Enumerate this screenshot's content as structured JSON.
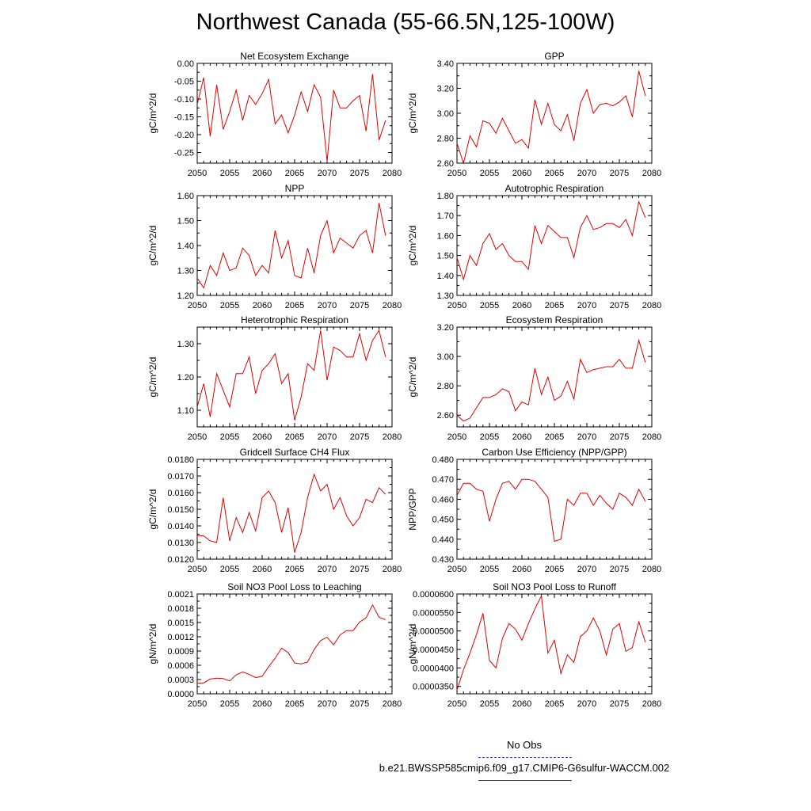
{
  "title": "Northwest Canada (55-66.5N,125-100W)",
  "legend": {
    "obs_label": "No Obs",
    "obs_color": "#3b3bd6",
    "case_label": "b.e21.BWSSP585cmip6.f09_g17.CMIP6-G6sulfur-WACCM.002",
    "case_color": "#e00000"
  },
  "chart_data": [
    {
      "type": "line",
      "title": "Net Ecosystem Exchange",
      "ylabel": "gC/m^2/d",
      "xlim": [
        2050,
        2080
      ],
      "ylim": [
        -0.28,
        0.0
      ],
      "xticks": [
        2050,
        2055,
        2060,
        2065,
        2070,
        2075,
        2080
      ],
      "yticks": [
        0.0,
        -0.05,
        -0.1,
        -0.15,
        -0.2,
        -0.25
      ],
      "ytick_labels": [
        "0.00",
        "-0.05",
        "-0.10",
        "-0.15",
        "-0.20",
        "-0.25"
      ],
      "x": [
        2050,
        2051,
        2052,
        2053,
        2054,
        2055,
        2056,
        2057,
        2058,
        2059,
        2060,
        2061,
        2062,
        2063,
        2064,
        2065,
        2066,
        2067,
        2068,
        2069,
        2070,
        2071,
        2072,
        2073,
        2074,
        2075,
        2076,
        2077,
        2078,
        2079
      ],
      "series": [
        {
          "color": "#e00000",
          "values": [
            -0.115,
            -0.04,
            -0.205,
            -0.06,
            -0.185,
            -0.135,
            -0.075,
            -0.16,
            -0.09,
            -0.115,
            -0.085,
            -0.045,
            -0.17,
            -0.145,
            -0.195,
            -0.145,
            -0.08,
            -0.135,
            -0.06,
            -0.095,
            -0.275,
            -0.075,
            -0.125,
            -0.125,
            -0.105,
            -0.09,
            -0.19,
            -0.03,
            -0.215,
            -0.16
          ]
        }
      ]
    },
    {
      "type": "line",
      "title": "GPP",
      "ylabel": "gC/m^2/d",
      "xlim": [
        2050,
        2080
      ],
      "ylim": [
        2.6,
        3.4
      ],
      "xticks": [
        2050,
        2055,
        2060,
        2065,
        2070,
        2075,
        2080
      ],
      "yticks": [
        2.6,
        2.8,
        3.0,
        3.2,
        3.4
      ],
      "ytick_labels": [
        "2.60",
        "2.80",
        "3.00",
        "3.20",
        "3.40"
      ],
      "x": [
        2050,
        2051,
        2052,
        2053,
        2054,
        2055,
        2056,
        2057,
        2058,
        2059,
        2060,
        2061,
        2062,
        2063,
        2064,
        2065,
        2066,
        2067,
        2068,
        2069,
        2070,
        2071,
        2072,
        2073,
        2074,
        2075,
        2076,
        2077,
        2078,
        2079
      ],
      "series": [
        {
          "color": "#e00000",
          "values": [
            2.76,
            2.6,
            2.82,
            2.73,
            2.94,
            2.92,
            2.84,
            2.96,
            2.86,
            2.76,
            2.79,
            2.72,
            3.11,
            2.91,
            3.08,
            2.91,
            2.86,
            2.99,
            2.78,
            3.08,
            3.19,
            3.0,
            3.07,
            3.08,
            3.06,
            3.09,
            3.14,
            2.97,
            3.34,
            3.14
          ]
        }
      ]
    },
    {
      "type": "line",
      "title": "NPP",
      "ylabel": "gC/m^2/d",
      "xlim": [
        2050,
        2080
      ],
      "ylim": [
        1.2,
        1.6
      ],
      "xticks": [
        2050,
        2055,
        2060,
        2065,
        2070,
        2075,
        2080
      ],
      "yticks": [
        1.2,
        1.3,
        1.4,
        1.5,
        1.6
      ],
      "ytick_labels": [
        "1.20",
        "1.30",
        "1.40",
        "1.50",
        "1.60"
      ],
      "x": [
        2050,
        2051,
        2052,
        2053,
        2054,
        2055,
        2056,
        2057,
        2058,
        2059,
        2060,
        2061,
        2062,
        2063,
        2064,
        2065,
        2066,
        2067,
        2068,
        2069,
        2070,
        2071,
        2072,
        2073,
        2074,
        2075,
        2076,
        2077,
        2078,
        2079
      ],
      "series": [
        {
          "color": "#e00000",
          "values": [
            1.27,
            1.23,
            1.32,
            1.28,
            1.37,
            1.3,
            1.31,
            1.39,
            1.36,
            1.28,
            1.32,
            1.29,
            1.46,
            1.35,
            1.42,
            1.28,
            1.27,
            1.39,
            1.29,
            1.44,
            1.5,
            1.37,
            1.43,
            1.41,
            1.39,
            1.44,
            1.46,
            1.37,
            1.57,
            1.44
          ]
        }
      ]
    },
    {
      "type": "line",
      "title": "Autotrophic Respiration",
      "ylabel": "gC/m^2/d",
      "xlim": [
        2050,
        2080
      ],
      "ylim": [
        1.3,
        1.8
      ],
      "xticks": [
        2050,
        2055,
        2060,
        2065,
        2070,
        2075,
        2080
      ],
      "yticks": [
        1.3,
        1.4,
        1.5,
        1.6,
        1.7,
        1.8
      ],
      "ytick_labels": [
        "1.30",
        "1.40",
        "1.50",
        "1.60",
        "1.70",
        "1.80"
      ],
      "x": [
        2050,
        2051,
        2052,
        2053,
        2054,
        2055,
        2056,
        2057,
        2058,
        2059,
        2060,
        2061,
        2062,
        2063,
        2064,
        2065,
        2066,
        2067,
        2068,
        2069,
        2070,
        2071,
        2072,
        2073,
        2074,
        2075,
        2076,
        2077,
        2078,
        2079
      ],
      "series": [
        {
          "color": "#e00000",
          "values": [
            1.49,
            1.38,
            1.5,
            1.45,
            1.56,
            1.61,
            1.53,
            1.56,
            1.5,
            1.47,
            1.47,
            1.43,
            1.65,
            1.56,
            1.65,
            1.62,
            1.59,
            1.59,
            1.49,
            1.64,
            1.7,
            1.63,
            1.64,
            1.66,
            1.66,
            1.64,
            1.68,
            1.6,
            1.77,
            1.69
          ]
        }
      ]
    },
    {
      "type": "line",
      "title": "Heterotrophic Respiration",
      "ylabel": "gC/m^2/d",
      "xlim": [
        2050,
        2080
      ],
      "ylim": [
        1.05,
        1.35
      ],
      "xticks": [
        2050,
        2055,
        2060,
        2065,
        2070,
        2075,
        2080
      ],
      "yticks": [
        1.1,
        1.2,
        1.3
      ],
      "ytick_labels": [
        "1.10",
        "1.20",
        "1.30"
      ],
      "x": [
        2050,
        2051,
        2052,
        2053,
        2054,
        2055,
        2056,
        2057,
        2058,
        2059,
        2060,
        2061,
        2062,
        2063,
        2064,
        2065,
        2066,
        2067,
        2068,
        2069,
        2070,
        2071,
        2072,
        2073,
        2074,
        2075,
        2076,
        2077,
        2078,
        2079
      ],
      "series": [
        {
          "color": "#e00000",
          "values": [
            1.11,
            1.18,
            1.08,
            1.21,
            1.16,
            1.11,
            1.21,
            1.21,
            1.26,
            1.15,
            1.22,
            1.24,
            1.27,
            1.18,
            1.21,
            1.07,
            1.14,
            1.24,
            1.22,
            1.34,
            1.19,
            1.29,
            1.28,
            1.26,
            1.26,
            1.33,
            1.25,
            1.31,
            1.34,
            1.26
          ]
        }
      ]
    },
    {
      "type": "line",
      "title": "Ecosystem Respiration",
      "ylabel": "gC/m^2/d",
      "xlim": [
        2050,
        2080
      ],
      "ylim": [
        2.52,
        3.2
      ],
      "xticks": [
        2050,
        2055,
        2060,
        2065,
        2070,
        2075,
        2080
      ],
      "yticks": [
        2.6,
        2.8,
        3.0,
        3.2
      ],
      "ytick_labels": [
        "2.60",
        "2.80",
        "3.00",
        "3.20"
      ],
      "x": [
        2050,
        2051,
        2052,
        2053,
        2054,
        2055,
        2056,
        2057,
        2058,
        2059,
        2060,
        2061,
        2062,
        2063,
        2064,
        2065,
        2066,
        2067,
        2068,
        2069,
        2070,
        2071,
        2072,
        2073,
        2074,
        2075,
        2076,
        2077,
        2078,
        2079
      ],
      "series": [
        {
          "color": "#e00000",
          "values": [
            2.6,
            2.56,
            2.58,
            2.65,
            2.72,
            2.72,
            2.74,
            2.78,
            2.76,
            2.63,
            2.69,
            2.67,
            2.92,
            2.74,
            2.86,
            2.7,
            2.73,
            2.83,
            2.71,
            2.98,
            2.89,
            2.91,
            2.92,
            2.93,
            2.93,
            2.98,
            2.92,
            2.92,
            3.11,
            2.96
          ]
        }
      ]
    },
    {
      "type": "line",
      "title": "Gridcell Surface CH4 Flux",
      "ylabel": "gC/m^2/d",
      "xlim": [
        2050,
        2080
      ],
      "ylim": [
        0.012,
        0.018
      ],
      "xticks": [
        2050,
        2055,
        2060,
        2065,
        2070,
        2075,
        2080
      ],
      "yticks": [
        0.012,
        0.013,
        0.014,
        0.015,
        0.016,
        0.017,
        0.018
      ],
      "ytick_labels": [
        "0.0120",
        "0.0130",
        "0.0140",
        "0.0150",
        "0.0160",
        "0.0170",
        "0.0180"
      ],
      "x": [
        2050,
        2051,
        2052,
        2053,
        2054,
        2055,
        2056,
        2057,
        2058,
        2059,
        2060,
        2061,
        2062,
        2063,
        2064,
        2065,
        2066,
        2067,
        2068,
        2069,
        2070,
        2071,
        2072,
        2073,
        2074,
        2075,
        2076,
        2077,
        2078,
        2079
      ],
      "series": [
        {
          "color": "#e00000",
          "values": [
            0.0134,
            0.0134,
            0.0131,
            0.013,
            0.0157,
            0.0131,
            0.0145,
            0.0136,
            0.0148,
            0.0137,
            0.0157,
            0.0161,
            0.0154,
            0.0136,
            0.0151,
            0.0124,
            0.0136,
            0.0157,
            0.0171,
            0.0161,
            0.0165,
            0.015,
            0.0157,
            0.0146,
            0.014,
            0.0145,
            0.0156,
            0.0154,
            0.0163,
            0.0159
          ]
        }
      ]
    },
    {
      "type": "line",
      "title": "Carbon Use Efficiency (NPP/GPP)",
      "ylabel": "NPP/GPP",
      "xlim": [
        2050,
        2080
      ],
      "ylim": [
        0.43,
        0.48
      ],
      "xticks": [
        2050,
        2055,
        2060,
        2065,
        2070,
        2075,
        2080
      ],
      "yticks": [
        0.43,
        0.44,
        0.45,
        0.46,
        0.47,
        0.48
      ],
      "ytick_labels": [
        "0.430",
        "0.440",
        "0.450",
        "0.460",
        "0.470",
        "0.480"
      ],
      "x": [
        2050,
        2051,
        2052,
        2053,
        2054,
        2055,
        2056,
        2057,
        2058,
        2059,
        2060,
        2061,
        2062,
        2063,
        2064,
        2065,
        2066,
        2067,
        2068,
        2069,
        2070,
        2071,
        2072,
        2073,
        2074,
        2075,
        2076,
        2077,
        2078,
        2079
      ],
      "series": [
        {
          "color": "#e00000",
          "values": [
            0.462,
            0.468,
            0.468,
            0.465,
            0.464,
            0.449,
            0.46,
            0.468,
            0.469,
            0.465,
            0.47,
            0.47,
            0.469,
            0.465,
            0.461,
            0.439,
            0.44,
            0.46,
            0.457,
            0.463,
            0.463,
            0.457,
            0.462,
            0.458,
            0.455,
            0.463,
            0.461,
            0.457,
            0.465,
            0.459
          ]
        }
      ]
    },
    {
      "type": "line",
      "title": "Soil NO3 Pool Loss to Leaching",
      "ylabel": "gN/m^2/d",
      "xlim": [
        2050,
        2080
      ],
      "ylim": [
        0.0,
        0.0021
      ],
      "xticks": [
        2050,
        2055,
        2060,
        2065,
        2070,
        2075,
        2080
      ],
      "yticks": [
        0.0,
        0.0003,
        0.0006,
        0.0009,
        0.0012,
        0.0015,
        0.0018,
        0.0021
      ],
      "ytick_labels": [
        "0.0000",
        "0.0003",
        "0.0006",
        "0.0009",
        "0.0012",
        "0.0015",
        "0.0018",
        "0.0021"
      ],
      "x": [
        2050,
        2051,
        2052,
        2053,
        2054,
        2055,
        2056,
        2057,
        2058,
        2059,
        2060,
        2061,
        2062,
        2063,
        2064,
        2065,
        2066,
        2067,
        2068,
        2069,
        2070,
        2071,
        2072,
        2073,
        2074,
        2075,
        2076,
        2077,
        2078,
        2079
      ],
      "series": [
        {
          "color": "#e00000",
          "values": [
            0.00022,
            0.00023,
            0.00031,
            0.00033,
            0.00032,
            0.00027,
            0.0004,
            0.00046,
            0.00041,
            0.00034,
            0.00037,
            0.00057,
            0.00075,
            0.00096,
            0.00087,
            0.00065,
            0.00063,
            0.00067,
            0.00093,
            0.00112,
            0.00119,
            0.00103,
            0.00124,
            0.00133,
            0.00133,
            0.00151,
            0.0016,
            0.00187,
            0.00161,
            0.00156
          ]
        }
      ]
    },
    {
      "type": "line",
      "title": "Soil NO3 Pool Loss to Runoff",
      "ylabel": "gN/m^2/d",
      "xlim": [
        2050,
        2080
      ],
      "ylim": [
        3.3e-05,
        6e-05
      ],
      "xticks": [
        2050,
        2055,
        2060,
        2065,
        2070,
        2075,
        2080
      ],
      "yticks": [
        3.5e-05,
        4e-05,
        4.5e-05,
        5e-05,
        5.5e-05,
        6e-05
      ],
      "ytick_labels": [
        "0.0000350",
        "0.0000400",
        "0.0000450",
        "0.0000500",
        "0.0000550",
        "0.0000600"
      ],
      "x": [
        2050,
        2051,
        2052,
        2053,
        2054,
        2055,
        2056,
        2057,
        2058,
        2059,
        2060,
        2061,
        2062,
        2063,
        2064,
        2065,
        2066,
        2067,
        2068,
        2069,
        2070,
        2071,
        2072,
        2073,
        2074,
        2075,
        2076,
        2077,
        2078,
        2079
      ],
      "series": [
        {
          "color": "#e00000",
          "values": [
            3.4e-05,
            3.95e-05,
            4.4e-05,
            4.9e-05,
            5.48e-05,
            4.2e-05,
            4e-05,
            4.8e-05,
            5.2e-05,
            5.05e-05,
            4.75e-05,
            5.2e-05,
            5.6e-05,
            5.95e-05,
            4.4e-05,
            4.75e-05,
            3.85e-05,
            4.35e-05,
            4.15e-05,
            4.85e-05,
            5e-05,
            5.35e-05,
            5e-05,
            4.35e-05,
            5.05e-05,
            5.2e-05,
            4.45e-05,
            4.55e-05,
            5.25e-05,
            4.7e-05
          ]
        }
      ]
    }
  ]
}
